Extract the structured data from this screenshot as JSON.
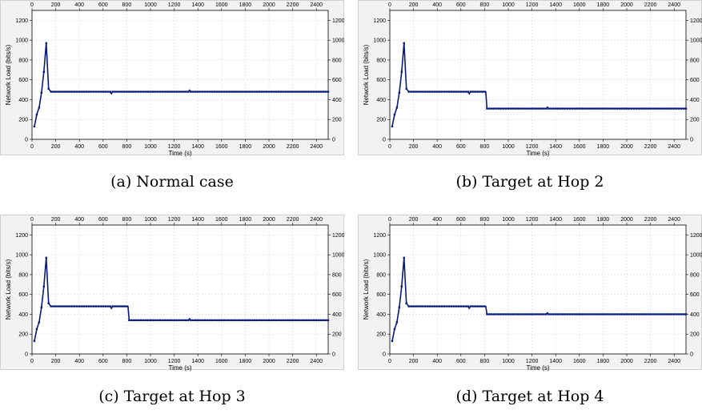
{
  "chart_data": [
    {
      "type": "line",
      "caption": "(a) Normal case",
      "xlabel": "Time (s)",
      "ylabel": "Network Load (bits/s)",
      "xlim": [
        0,
        2500
      ],
      "ylim": [
        0,
        1300
      ],
      "xticks": [
        0,
        200,
        400,
        600,
        800,
        1000,
        1200,
        1400,
        1600,
        1800,
        2000,
        2200,
        2400
      ],
      "yticks": [
        0,
        200,
        400,
        600,
        800,
        1000,
        1200
      ],
      "grid": true,
      "series": [
        {
          "color": "#0a1a7a",
          "points": [
            [
              20,
              130
            ],
            [
              40,
              250
            ],
            [
              60,
              320
            ],
            [
              80,
              470
            ],
            [
              100,
              680
            ],
            [
              120,
              970
            ],
            [
              140,
              510
            ],
            [
              160,
              480
            ],
            [
              660,
              480
            ],
            [
              670,
              460
            ],
            [
              680,
              480
            ],
            [
              1320,
              480
            ],
            [
              1330,
              495
            ],
            [
              1340,
              480
            ],
            [
              2500,
              480
            ]
          ]
        }
      ]
    },
    {
      "type": "line",
      "caption": "(b) Target at Hop 2",
      "xlabel": "Time (s)",
      "ylabel": "Network Load (bits/s)",
      "xlim": [
        0,
        2500
      ],
      "ylim": [
        0,
        1300
      ],
      "xticks": [
        0,
        200,
        400,
        600,
        800,
        1000,
        1200,
        1400,
        1600,
        1800,
        2000,
        2200,
        2400
      ],
      "yticks": [
        0,
        200,
        400,
        600,
        800,
        1000,
        1200
      ],
      "grid": true,
      "series": [
        {
          "color": "#0a1a7a",
          "points": [
            [
              20,
              130
            ],
            [
              40,
              250
            ],
            [
              60,
              320
            ],
            [
              80,
              470
            ],
            [
              100,
              680
            ],
            [
              120,
              970
            ],
            [
              140,
              510
            ],
            [
              160,
              480
            ],
            [
              660,
              480
            ],
            [
              670,
              460
            ],
            [
              680,
              480
            ],
            [
              810,
              480
            ],
            [
              820,
              310
            ],
            [
              1320,
              310
            ],
            [
              1330,
              325
            ],
            [
              1340,
              310
            ],
            [
              2500,
              310
            ]
          ]
        }
      ]
    },
    {
      "type": "line",
      "caption": "(c) Target at Hop 3",
      "xlabel": "Time (s)",
      "ylabel": "Network Load (bits/s)",
      "xlim": [
        0,
        2500
      ],
      "ylim": [
        0,
        1300
      ],
      "xticks": [
        0,
        200,
        400,
        600,
        800,
        1000,
        1200,
        1400,
        1600,
        1800,
        2000,
        2200,
        2400
      ],
      "yticks": [
        0,
        200,
        400,
        600,
        800,
        1000,
        1200
      ],
      "grid": true,
      "series": [
        {
          "color": "#0a1a7a",
          "points": [
            [
              20,
              130
            ],
            [
              40,
              250
            ],
            [
              60,
              320
            ],
            [
              80,
              470
            ],
            [
              100,
              680
            ],
            [
              120,
              970
            ],
            [
              140,
              510
            ],
            [
              160,
              480
            ],
            [
              660,
              480
            ],
            [
              670,
              460
            ],
            [
              680,
              480
            ],
            [
              810,
              480
            ],
            [
              820,
              340
            ],
            [
              1320,
              340
            ],
            [
              1330,
              355
            ],
            [
              1340,
              340
            ],
            [
              2500,
              340
            ]
          ]
        }
      ]
    },
    {
      "type": "line",
      "caption": "(d) Target at Hop 4",
      "xlabel": "Time (s)",
      "ylabel": "Network Load (bits/s)",
      "xlim": [
        0,
        2500
      ],
      "ylim": [
        0,
        1300
      ],
      "xticks": [
        0,
        200,
        400,
        600,
        800,
        1000,
        1200,
        1400,
        1600,
        1800,
        2000,
        2200,
        2400
      ],
      "yticks": [
        0,
        200,
        400,
        600,
        800,
        1000,
        1200
      ],
      "grid": true,
      "series": [
        {
          "color": "#0a1a7a",
          "points": [
            [
              20,
              130
            ],
            [
              40,
              250
            ],
            [
              60,
              320
            ],
            [
              80,
              470
            ],
            [
              100,
              680
            ],
            [
              120,
              970
            ],
            [
              140,
              510
            ],
            [
              160,
              480
            ],
            [
              660,
              480
            ],
            [
              670,
              460
            ],
            [
              680,
              480
            ],
            [
              810,
              480
            ],
            [
              820,
              400
            ],
            [
              1320,
              400
            ],
            [
              1330,
              415
            ],
            [
              1340,
              400
            ],
            [
              2500,
              400
            ]
          ]
        }
      ]
    }
  ]
}
